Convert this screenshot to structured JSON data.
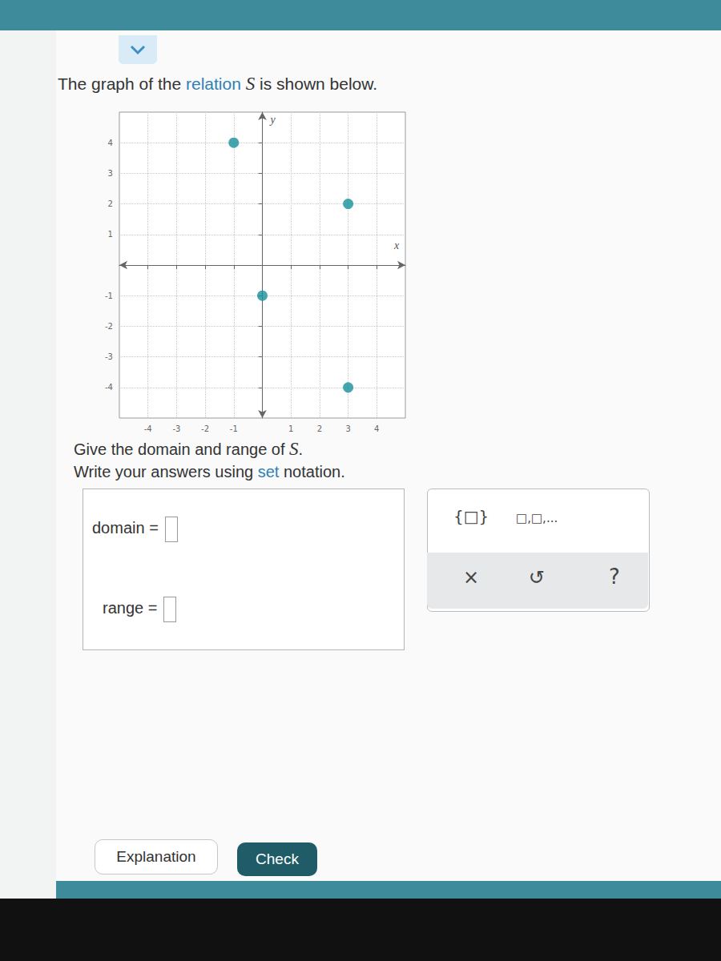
{
  "prompt": {
    "before": "The graph of the ",
    "link": "relation",
    "between": " ",
    "variable": "S",
    "after": " is shown below."
  },
  "chart_data": {
    "type": "scatter",
    "x_label": "x",
    "y_label": "y",
    "points": [
      {
        "x": -1,
        "y": 4
      },
      {
        "x": 3,
        "y": 2
      },
      {
        "x": 0,
        "y": -1
      },
      {
        "x": 3,
        "y": -4
      }
    ],
    "xlim": [
      -5,
      5
    ],
    "xticks": [
      -4,
      -3,
      -2,
      -1,
      1,
      2,
      3,
      4
    ],
    "ylim": [
      -5,
      5
    ],
    "yticks": [
      -4,
      -3,
      -2,
      -1,
      1,
      2,
      3,
      4
    ],
    "grid": true,
    "color": "#17909c",
    "marker": "circle"
  },
  "instructions": [
    {
      "before": "Give the domain and range of ",
      "variable": "S",
      "after": "."
    },
    {
      "before": "Write your answers using ",
      "link": "set",
      "after": " notation."
    }
  ],
  "fields": [
    "domain =",
    "range ="
  ],
  "palette": [
    "{□}",
    "□,□,...",
    "×",
    "↺",
    "?"
  ],
  "buttons": [
    "Explanation",
    "Check"
  ]
}
